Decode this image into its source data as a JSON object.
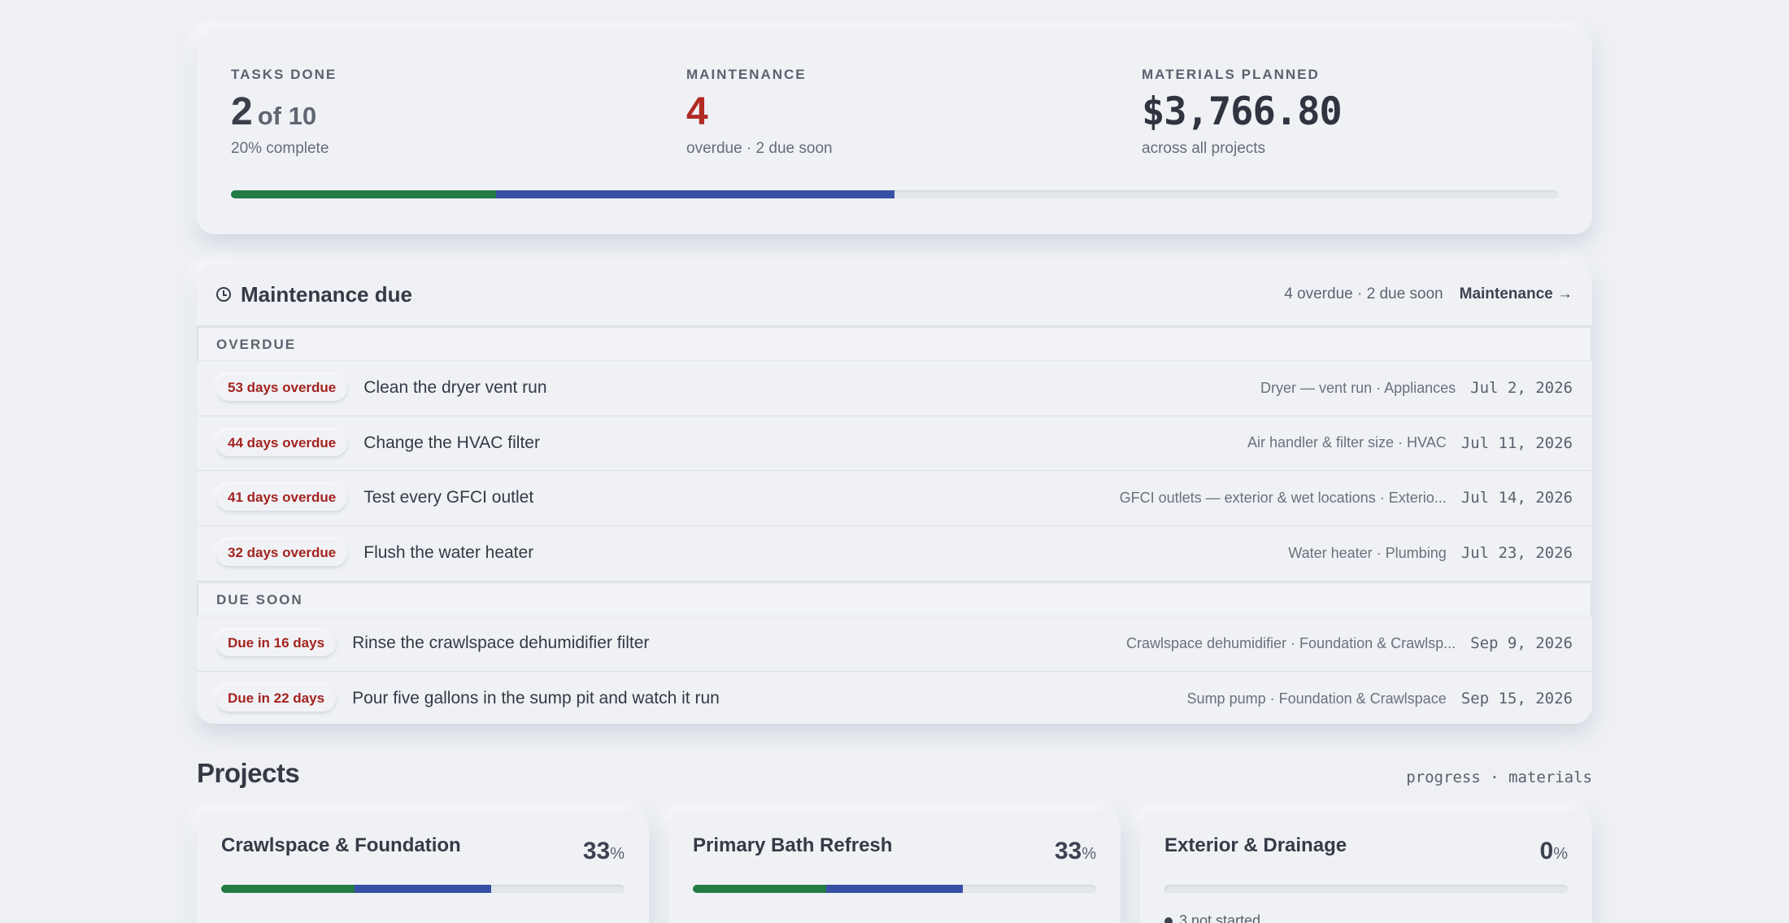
{
  "stats": {
    "tasks": {
      "label": "TASKS DONE",
      "value": "2",
      "of": "of 10",
      "sub": "20% complete"
    },
    "maintenance": {
      "label": "MAINTENANCE",
      "value": "4",
      "sub": "overdue · 2 due soon"
    },
    "materials": {
      "label": "MATERIALS PLANNED",
      "value": "$3,766.80",
      "sub": "across all projects"
    },
    "progress": {
      "done_fraction": 0.2,
      "in_progress_fraction": 0.3,
      "done_color": "#247a44",
      "in_progress_color": "#3650a6"
    }
  },
  "maintenance": {
    "title": "Maintenance due",
    "summary": "4 overdue · 2 due soon",
    "link": "Maintenance →",
    "overdue_label": "OVERDUE",
    "due_soon_label": "DUE SOON",
    "overdue": [
      {
        "badge": "53 days overdue",
        "task": "Clean the dryer vent run",
        "meta": "Dryer — vent run · Appliances",
        "date": "Jul 2, 2026"
      },
      {
        "badge": "44 days overdue",
        "task": "Change the HVAC filter",
        "meta": "Air handler & filter size · HVAC",
        "date": "Jul 11, 2026"
      },
      {
        "badge": "41 days overdue",
        "task": "Test every GFCI outlet",
        "meta": "GFCI outlets — exterior & wet locations · Exterio...",
        "date": "Jul 14, 2026"
      },
      {
        "badge": "32 days overdue",
        "task": "Flush the water heater",
        "meta": "Water heater · Plumbing",
        "date": "Jul 23, 2026"
      }
    ],
    "due_soon": [
      {
        "badge": "Due in 16 days",
        "task": "Rinse the crawlspace dehumidifier filter",
        "meta": "Crawlspace dehumidifier · Foundation & Crawlsp...",
        "date": "Sep 9, 2026"
      },
      {
        "badge": "Due in 22 days",
        "task": "Pour five gallons in the sump pit and watch it run",
        "meta": "Sump pump · Foundation & Crawlspace",
        "date": "Sep 15, 2026"
      }
    ]
  },
  "projects": {
    "title": "Projects",
    "legend": "progress · materials",
    "items": [
      {
        "name": "Crawlspace & Foundation",
        "pct": "33",
        "pct_symbol": "%",
        "done_fraction": 0.33,
        "in_progress_fraction": 0.34,
        "sub": ""
      },
      {
        "name": "Primary Bath Refresh",
        "pct": "33",
        "pct_symbol": "%",
        "done_fraction": 0.33,
        "in_progress_fraction": 0.34,
        "sub": ""
      },
      {
        "name": "Exterior & Drainage",
        "pct": "0",
        "pct_symbol": "%",
        "done_fraction": 0,
        "in_progress_fraction": 0,
        "sub": "3 not started"
      }
    ]
  }
}
